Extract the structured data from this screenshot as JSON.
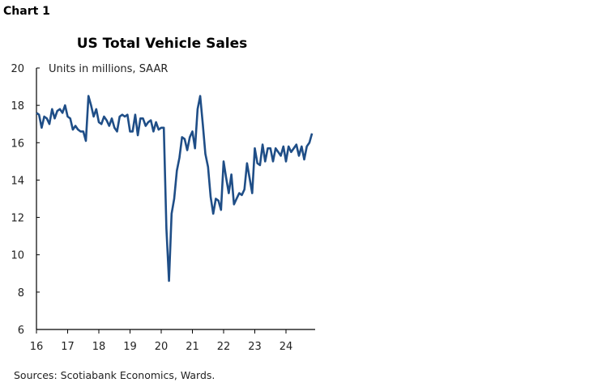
{
  "figure_label": "Chart 1",
  "source": "Sources: Scotiabank Economics, Wards.",
  "chart_data": {
    "type": "line",
    "title": "US Total Vehicle Sales",
    "annotation": "Units in millions, SAAR",
    "xlabel": "",
    "ylabel": "",
    "ylim": [
      6,
      20
    ],
    "yticks": [
      6,
      8,
      10,
      12,
      14,
      16,
      18,
      20
    ],
    "xlim": [
      2016,
      2024.9
    ],
    "xtick_labels": [
      "16",
      "17",
      "18",
      "19",
      "20",
      "21",
      "22",
      "23",
      "24"
    ],
    "x_start": "2016-01",
    "frequency": "monthly",
    "grid": false,
    "color": "#1f4e87",
    "series": [
      {
        "values": [
          17.6,
          17.5,
          16.8,
          17.4,
          17.3,
          17.0,
          17.8,
          17.3,
          17.7,
          17.8,
          17.6,
          18.0,
          17.4,
          17.3,
          16.7,
          16.9,
          16.7,
          16.6,
          16.6,
          16.1,
          18.5,
          18.0,
          17.4,
          17.8,
          17.1,
          17.0,
          17.4,
          17.2,
          16.9,
          17.3,
          16.8,
          16.6,
          17.4,
          17.5,
          17.4,
          17.5,
          16.6,
          16.6,
          17.5,
          16.4,
          17.3,
          17.3,
          16.9,
          17.1,
          17.2,
          16.6,
          17.1,
          16.7,
          16.8,
          16.8,
          11.4,
          8.6,
          12.2,
          13.0,
          14.5,
          15.2,
          16.3,
          16.2,
          15.6,
          16.3,
          16.6,
          15.7,
          17.8,
          18.5,
          17.0,
          15.4,
          14.7,
          13.1,
          12.2,
          13.0,
          12.9,
          12.4,
          15.0,
          14.1,
          13.3,
          14.3,
          12.7,
          13.0,
          13.3,
          13.2,
          13.5,
          14.9,
          14.1,
          13.3,
          15.7,
          14.9,
          14.8,
          15.9,
          15.0,
          15.7,
          15.7,
          15.0,
          15.7,
          15.5,
          15.3,
          15.8,
          15.0,
          15.8,
          15.5,
          15.7,
          15.9,
          15.3,
          15.8,
          15.1,
          15.8,
          16.0,
          16.5
        ]
      }
    ]
  }
}
